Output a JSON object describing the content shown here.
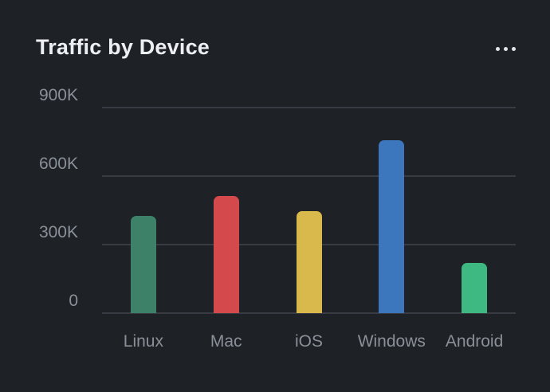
{
  "card": {
    "title": "Traffic by Device",
    "menu_icon": "ellipsis-horizontal"
  },
  "colors": {
    "background": "#1e2227",
    "title_text": "#edeff2",
    "axis_text": "#8a9097",
    "gridline": "#383c42",
    "menu_icon_dots": "#e4e6e9"
  },
  "chart_data": {
    "type": "bar",
    "title": "Traffic by Device",
    "categories": [
      "Linux",
      "Mac",
      "iOS",
      "Windows",
      "Android"
    ],
    "values": [
      425000,
      512000,
      448000,
      757000,
      221000
    ],
    "bar_colors": [
      "#3e8169",
      "#d44a4c",
      "#d9b94b",
      "#3c76bd",
      "#3eb981"
    ],
    "xlabel": "",
    "ylabel": "",
    "ylim": [
      0,
      900000
    ],
    "y_ticks": [
      {
        "label": "900K",
        "value": 900000
      },
      {
        "label": "600K",
        "value": 600000
      },
      {
        "label": "300K",
        "value": 300000
      },
      {
        "label": "0",
        "value": 0
      }
    ],
    "grid": true,
    "legend": false,
    "bar_corner_radius": 7
  }
}
